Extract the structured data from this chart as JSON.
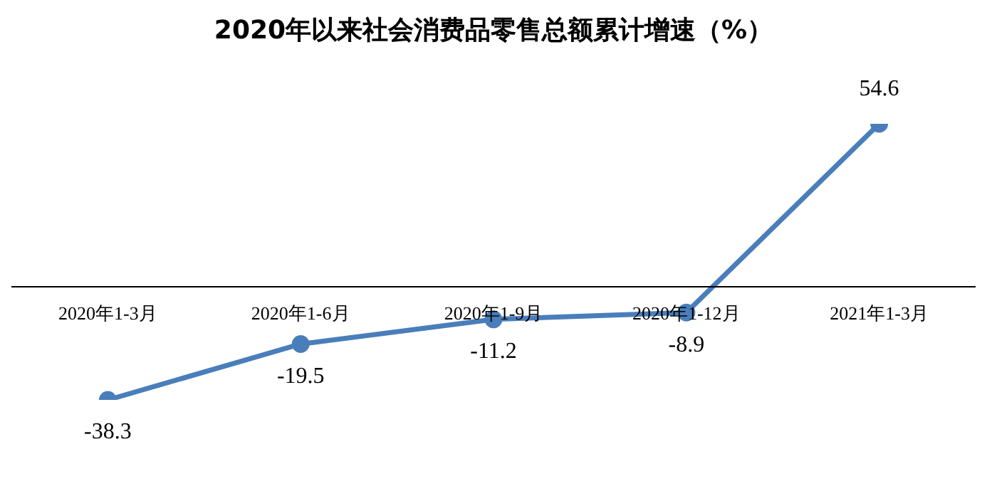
{
  "chart_data": {
    "type": "line",
    "title": "2020年以来社会消费品零售总额累计增速（%）",
    "categories": [
      "2020年1-3月",
      "2020年1-6月",
      "2020年1-9月",
      "2020年1-12月",
      "2021年1-3月"
    ],
    "values": [
      -38.3,
      -19.5,
      -11.2,
      -8.9,
      54.6
    ],
    "color": "#4a7ebb",
    "marker": "circle",
    "data_labels": true
  }
}
